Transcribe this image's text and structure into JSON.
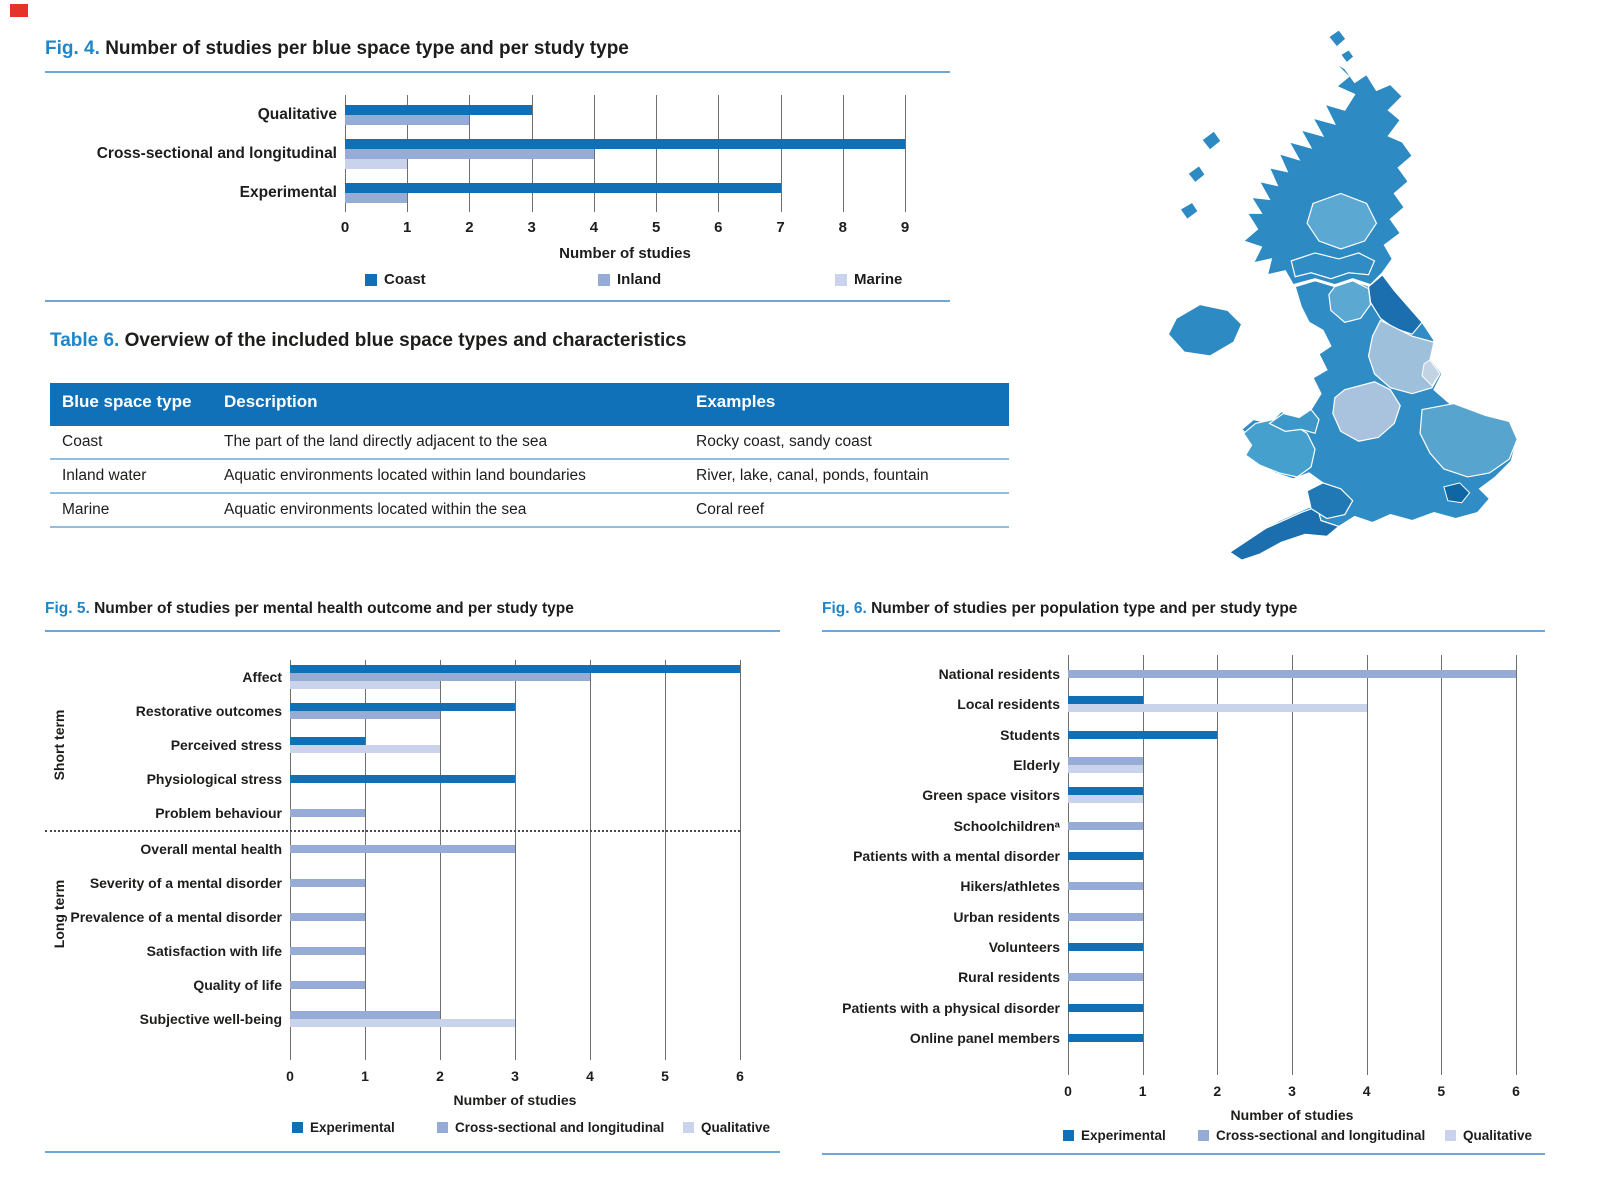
{
  "page": {
    "marker_color": "#e5332a",
    "accent_color": "#1f87c9",
    "rule_color": "#6fa6d8",
    "bar_colors": {
      "dark": "#1170b5",
      "medium": "#97abd7",
      "light": "#c9d4ec"
    }
  },
  "fig4": {
    "label": "Fig. 4.",
    "title": "Number of studies per blue space type and per study type",
    "chart_data": {
      "type": "bar",
      "orientation": "horizontal",
      "title": "Number of studies per blue space type and per study type",
      "categories": [
        "Qualitative",
        "Cross-sectional and longitudinal",
        "Experimental"
      ],
      "series": [
        {
          "name": "Coast",
          "color_key": "dark",
          "values": [
            3,
            9,
            7
          ]
        },
        {
          "name": "Inland",
          "color_key": "medium",
          "values": [
            2,
            4,
            1
          ]
        },
        {
          "name": "Marine",
          "color_key": "light",
          "values": [
            0,
            1,
            0
          ]
        }
      ],
      "xlabel": "Number of studies",
      "xlim": [
        0,
        9
      ],
      "xticks": [
        0,
        1,
        2,
        3,
        4,
        5,
        6,
        7,
        8,
        9
      ],
      "grid": "vertical",
      "legend_position": "bottom"
    }
  },
  "table6": {
    "label": "Table 6.",
    "title": "Overview of the included blue space types and characteristics",
    "columns": [
      "Blue space type",
      "Description",
      "Examples"
    ],
    "rows": [
      [
        "Coast",
        "The part of the land directly adjacent to the sea",
        "Rocky coast, sandy coast"
      ],
      [
        "Inland water",
        "Aquatic environments located within land boundaries",
        "River, lake, canal, ponds, fountain"
      ],
      [
        "Marine",
        "Aquatic environments located within the sea",
        "Coral reef"
      ]
    ]
  },
  "map": {
    "name": "United Kingdom regions choropleth",
    "palette": [
      "#2d8ac2",
      "#2f8cc4",
      "#1e6fa9",
      "#5ba8d2",
      "#9fc0da",
      "#a9c2de",
      "#57a4cf",
      "#45a0cd",
      "#1b6fae",
      "#0f66a4",
      "#3d97c8",
      "#c2d3e3",
      "#2079b4"
    ]
  },
  "fig5": {
    "label": "Fig. 5.",
    "title": "Number of studies per mental health outcome and per study type",
    "chart_data": {
      "type": "bar",
      "orientation": "horizontal",
      "title": "Number of studies per mental health outcome and per study type",
      "categories": [
        "Affect",
        "Restorative outcomes",
        "Perceived stress",
        "Physiological stress",
        "Problem behaviour",
        "Overall mental health",
        "Severity of a mental disorder",
        "Prevalence of a mental disorder",
        "Satisfaction with life",
        "Quality of life",
        "Subjective well-being"
      ],
      "groups": [
        {
          "label": "Short term",
          "from": 0,
          "to": 4
        },
        {
          "label": "Long term",
          "from": 5,
          "to": 10
        }
      ],
      "divider_after": 4,
      "series": [
        {
          "name": "Experimental",
          "color_key": "dark",
          "values": [
            6,
            3,
            1,
            3,
            0,
            0,
            0,
            0,
            0,
            0,
            0
          ]
        },
        {
          "name": "Cross-sectional and longitudinal",
          "color_key": "medium",
          "values": [
            4,
            2,
            0,
            0,
            1,
            3,
            1,
            1,
            1,
            1,
            2
          ]
        },
        {
          "name": "Qualitative",
          "color_key": "light",
          "values": [
            2,
            0,
            2,
            0,
            0,
            0,
            0,
            0,
            0,
            0,
            3
          ]
        }
      ],
      "xlabel": "Number of studies",
      "xlim": [
        0,
        6
      ],
      "xticks": [
        0,
        1,
        2,
        3,
        4,
        5,
        6
      ],
      "grid": "vertical",
      "legend_position": "bottom"
    }
  },
  "fig6": {
    "label": "Fig. 6.",
    "title": "Number of studies per population type and per study type",
    "chart_data": {
      "type": "bar",
      "orientation": "horizontal",
      "title": "Number of studies per population type and per study type",
      "categories": [
        "National residents",
        "Local residents",
        "Students",
        "Elderly",
        "Green space visitors",
        "Schoolchildrenᵃ",
        "Patients with a mental disorder",
        "Hikers/athletes",
        "Urban residents",
        "Volunteers",
        "Rural residents",
        "Patients with a physical disorder",
        "Online panel members"
      ],
      "series": [
        {
          "name": "Experimental",
          "color_key": "dark",
          "values": [
            0,
            1,
            2,
            0,
            1,
            0,
            1,
            0,
            0,
            1,
            0,
            1,
            1
          ]
        },
        {
          "name": "Cross-sectional and longitudinal",
          "color_key": "medium",
          "values": [
            6,
            0,
            0,
            1,
            0,
            1,
            0,
            1,
            1,
            0,
            1,
            0,
            0
          ]
        },
        {
          "name": "Qualitative",
          "color_key": "light",
          "values": [
            0,
            4,
            0,
            1,
            1,
            0,
            0,
            0,
            0,
            0,
            0,
            0,
            0
          ]
        }
      ],
      "xlabel": "Number of studies",
      "xlim": [
        0,
        6
      ],
      "xticks": [
        0,
        1,
        2,
        3,
        4,
        5,
        6
      ],
      "grid": "vertical",
      "legend_position": "bottom"
    }
  }
}
